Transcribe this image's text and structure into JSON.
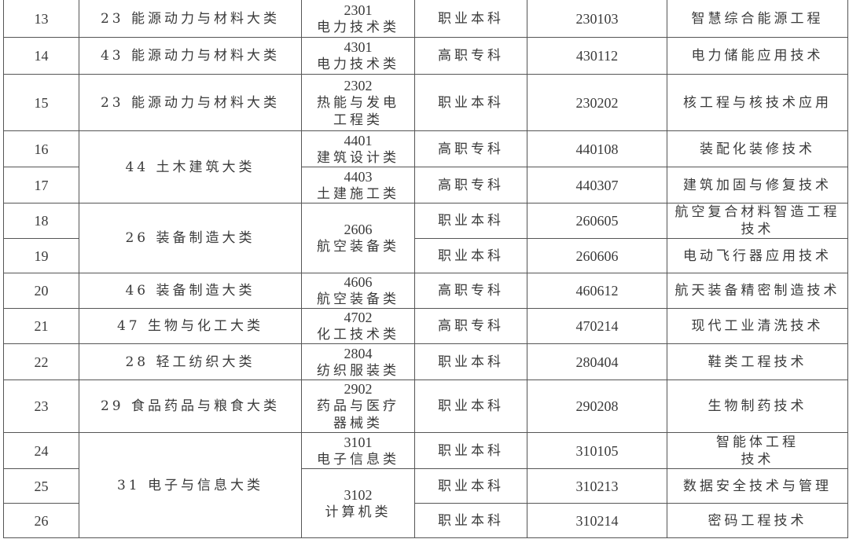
{
  "table": {
    "rows": [
      {
        "no": "13",
        "category": "23 能源动力与材料大类",
        "subcategory": {
          "code": "2301",
          "name": [
            "电力技术类"
          ]
        },
        "level": "职业本科",
        "code": "230103",
        "major": [
          "智慧综合能源工程"
        ]
      },
      {
        "no": "14",
        "category": "43 能源动力与材料大类",
        "subcategory": {
          "code": "4301",
          "name": [
            "电力技术类"
          ]
        },
        "level": "高职专科",
        "code": "430112",
        "major": [
          "电力储能应用技术"
        ]
      },
      {
        "no": "15",
        "category": "23 能源动力与材料大类",
        "subcategory": {
          "code": "2302",
          "name": [
            "热能与发电",
            "工程类"
          ]
        },
        "level": "职业本科",
        "code": "230202",
        "major": [
          "核工程与核技术应用"
        ]
      },
      {
        "no": "16",
        "category": "44 土木建筑大类",
        "subcategory": {
          "code": "4401",
          "name": [
            "建筑设计类"
          ]
        },
        "level": "高职专科",
        "code": "440108",
        "major": [
          "装配化装修技术"
        ]
      },
      {
        "no": "17",
        "category": null,
        "subcategory": {
          "code": "4403",
          "name": [
            "土建施工类"
          ]
        },
        "level": "高职专科",
        "code": "440307",
        "major": [
          "建筑加固与修复技术"
        ]
      },
      {
        "no": "18",
        "category": "26 装备制造大类",
        "subcategory": {
          "code": "2606",
          "name": [
            "航空装备类"
          ]
        },
        "level": "职业本科",
        "code": "260605",
        "major": [
          "航空复合材料智造工程",
          "技术"
        ]
      },
      {
        "no": "19",
        "category": null,
        "subcategory": null,
        "level": "职业本科",
        "code": "260606",
        "major": [
          "电动飞行器应用技术"
        ]
      },
      {
        "no": "20",
        "category": "46 装备制造大类",
        "subcategory": {
          "code": "4606",
          "name": [
            "航空装备类"
          ]
        },
        "level": "高职专科",
        "code": "460612",
        "major": [
          "航天装备精密制造技术"
        ]
      },
      {
        "no": "21",
        "category": "47 生物与化工大类",
        "subcategory": {
          "code": "4702",
          "name": [
            "化工技术类"
          ]
        },
        "level": "高职专科",
        "code": "470214",
        "major": [
          "现代工业清洗技术"
        ]
      },
      {
        "no": "22",
        "category": "28 轻工纺织大类",
        "subcategory": {
          "code": "2804",
          "name": [
            "纺织服装类"
          ]
        },
        "level": "职业本科",
        "code": "280404",
        "major": [
          "鞋类工程技术"
        ]
      },
      {
        "no": "23",
        "category": "29 食品药品与粮食大类",
        "subcategory": {
          "code": "2902",
          "name": [
            "药品与医疗",
            "器械类"
          ]
        },
        "level": "职业本科",
        "code": "290208",
        "major": [
          "生物制药技术"
        ]
      },
      {
        "no": "24",
        "category": "31 电子与信息大类",
        "subcategory": {
          "code": "3101",
          "name": [
            "电子信息类"
          ]
        },
        "level": "职业本科",
        "code": "310105",
        "major": [
          "智能体工程",
          "技术"
        ]
      },
      {
        "no": "25",
        "category": null,
        "subcategory": {
          "code": "3102",
          "name": [
            "计算机类"
          ]
        },
        "level": "职业本科",
        "code": "310213",
        "major": [
          "数据安全技术与管理"
        ]
      },
      {
        "no": "26",
        "category": null,
        "subcategory": null,
        "level": "职业本科",
        "code": "310214",
        "major": [
          "密码工程技术"
        ]
      }
    ]
  }
}
